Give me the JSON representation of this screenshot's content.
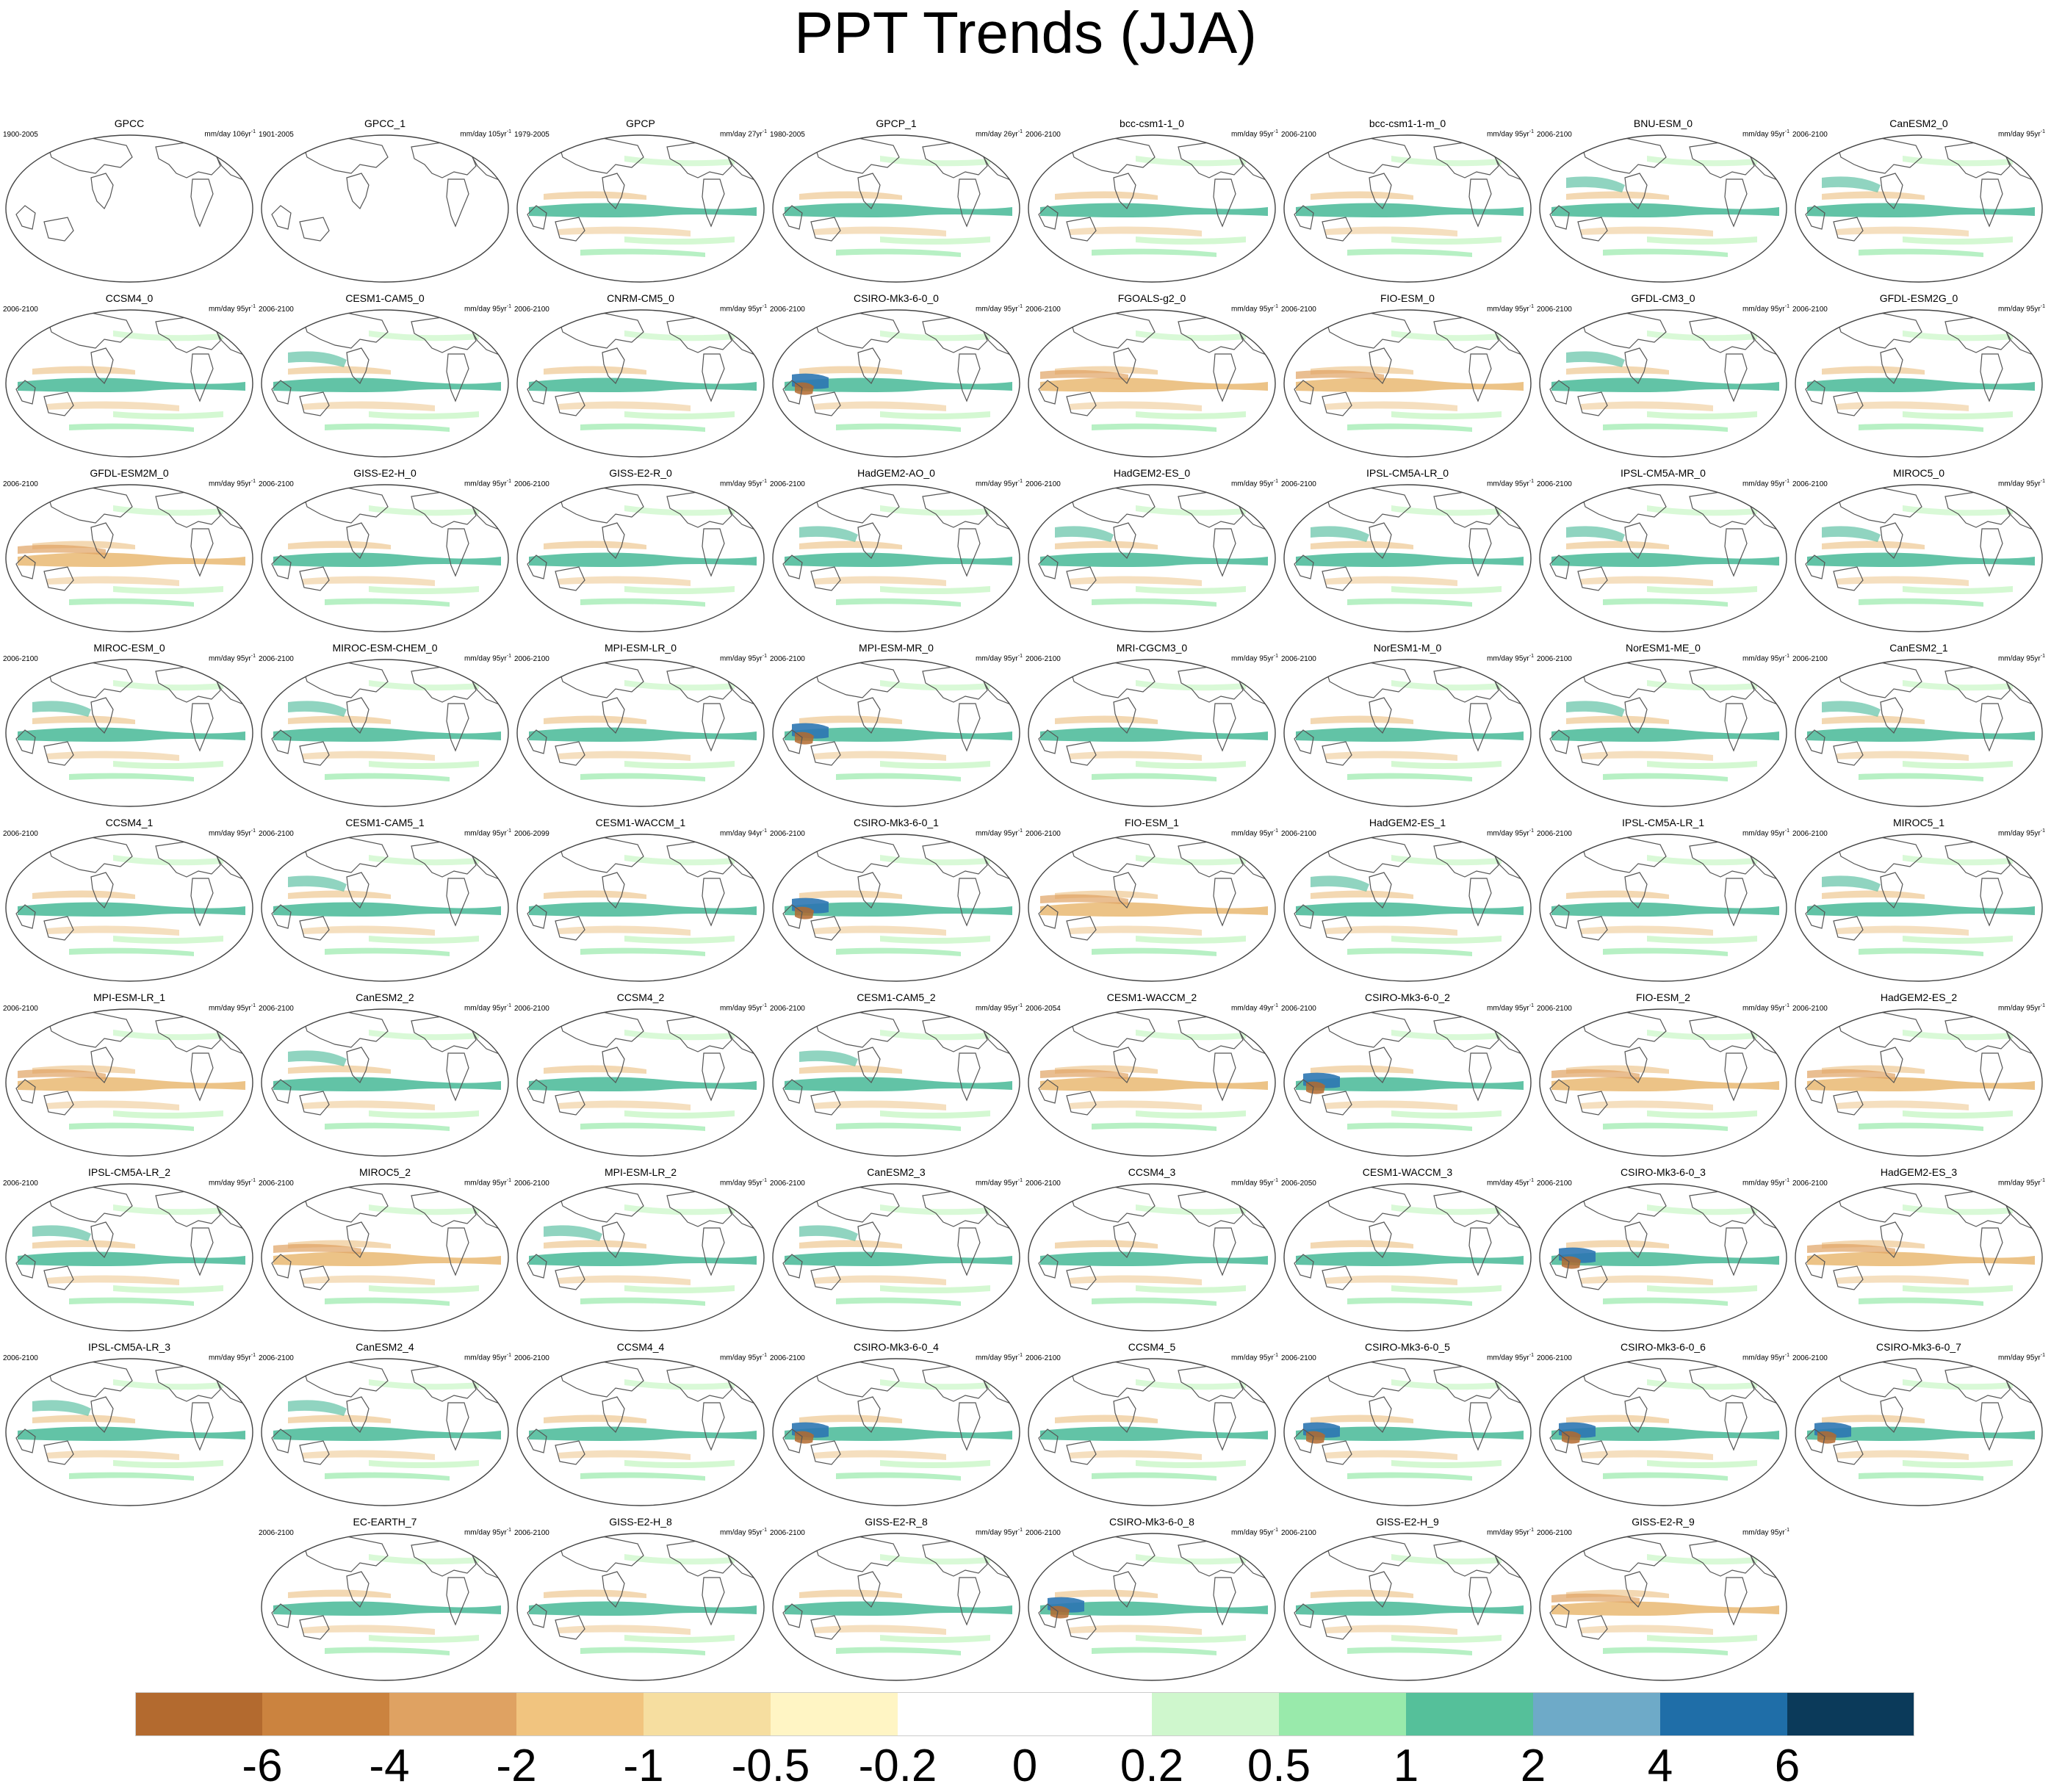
{
  "title": "PPT Trends (JJA)",
  "colors": {
    "palette": [
      "#b36a2f",
      "#cb833f",
      "#dfa262",
      "#f1c47f",
      "#f6dea0",
      "#fff5c4",
      "#ffffff",
      "#ffffff",
      "#cff7cd",
      "#99eaab",
      "#55c09a",
      "#6eaac8",
      "#1f6ea8",
      "#0b3a5a"
    ],
    "ocean_dry": "#e9b872",
    "ocean_wet": "#46b896",
    "ocean_wetter": "#2e77b2",
    "coast": "#555555"
  },
  "colorbar": {
    "tick_labels": [
      "-6",
      "-4",
      "-2",
      "-1",
      "-0.5",
      "-0.2",
      "0",
      "0.2",
      "0.5",
      "1",
      "2",
      "4",
      "6"
    ]
  },
  "panels": [
    {
      "title": "GPCC",
      "years": "1900-2005",
      "scale": "mm/day 106yr",
      "pattern": "sparse"
    },
    {
      "title": "GPCC_1",
      "years": "1901-2005",
      "scale": "mm/day 105yr",
      "pattern": "sparse"
    },
    {
      "title": "GPCP",
      "years": "1979-2005",
      "scale": "mm/day 27yr",
      "pattern": "obs"
    },
    {
      "title": "GPCP_1",
      "years": "1980-2005",
      "scale": "mm/day 26yr",
      "pattern": "obs"
    },
    {
      "title": "bcc-csm1-1_0",
      "years": "2006-2100",
      "scale": "mm/day 95yr",
      "pattern": "model"
    },
    {
      "title": "bcc-csm1-1-m_0",
      "years": "2006-2100",
      "scale": "mm/day 95yr",
      "pattern": "model"
    },
    {
      "title": "BNU-ESM_0",
      "years": "2006-2100",
      "scale": "mm/day 95yr",
      "pattern": "wet"
    },
    {
      "title": "CanESM2_0",
      "years": "2006-2100",
      "scale": "mm/day 95yr",
      "pattern": "wet"
    },
    {
      "title": "CCSM4_0",
      "years": "2006-2100",
      "scale": "mm/day 95yr",
      "pattern": "model"
    },
    {
      "title": "CESM1-CAM5_0",
      "years": "2006-2100",
      "scale": "mm/day 95yr",
      "pattern": "wet"
    },
    {
      "title": "CNRM-CM5_0",
      "years": "2006-2100",
      "scale": "mm/day 95yr",
      "pattern": "model"
    },
    {
      "title": "CSIRO-Mk3-6-0_0",
      "years": "2006-2100",
      "scale": "mm/day 95yr",
      "pattern": "strong"
    },
    {
      "title": "FGOALS-g2_0",
      "years": "2006-2100",
      "scale": "mm/day 95yr",
      "pattern": "dry"
    },
    {
      "title": "FIO-ESM_0",
      "years": "2006-2100",
      "scale": "mm/day 95yr",
      "pattern": "dry"
    },
    {
      "title": "GFDL-CM3_0",
      "years": "2006-2100",
      "scale": "mm/day 95yr",
      "pattern": "wet"
    },
    {
      "title": "GFDL-ESM2G_0",
      "years": "2006-2100",
      "scale": "mm/day 95yr",
      "pattern": "model"
    },
    {
      "title": "GFDL-ESM2M_0",
      "years": "2006-2100",
      "scale": "mm/day 95yr",
      "pattern": "dry"
    },
    {
      "title": "GISS-E2-H_0",
      "years": "2006-2100",
      "scale": "mm/day 95yr",
      "pattern": "model"
    },
    {
      "title": "GISS-E2-R_0",
      "years": "2006-2100",
      "scale": "mm/day 95yr",
      "pattern": "model"
    },
    {
      "title": "HadGEM2-AO_0",
      "years": "2006-2100",
      "scale": "mm/day 95yr",
      "pattern": "wet"
    },
    {
      "title": "HadGEM2-ES_0",
      "years": "2006-2100",
      "scale": "mm/day 95yr",
      "pattern": "wet"
    },
    {
      "title": "IPSL-CM5A-LR_0",
      "years": "2006-2100",
      "scale": "mm/day 95yr",
      "pattern": "wet"
    },
    {
      "title": "IPSL-CM5A-MR_0",
      "years": "2006-2100",
      "scale": "mm/day 95yr",
      "pattern": "wet"
    },
    {
      "title": "MIROC5_0",
      "years": "2006-2100",
      "scale": "mm/day 95yr",
      "pattern": "wet"
    },
    {
      "title": "MIROC-ESM_0",
      "years": "2006-2100",
      "scale": "mm/day 95yr",
      "pattern": "wet"
    },
    {
      "title": "MIROC-ESM-CHEM_0",
      "years": "2006-2100",
      "scale": "mm/day 95yr",
      "pattern": "wet"
    },
    {
      "title": "MPI-ESM-LR_0",
      "years": "2006-2100",
      "scale": "mm/day 95yr",
      "pattern": "model"
    },
    {
      "title": "MPI-ESM-MR_0",
      "years": "2006-2100",
      "scale": "mm/day 95yr",
      "pattern": "strong"
    },
    {
      "title": "MRI-CGCM3_0",
      "years": "2006-2100",
      "scale": "mm/day 95yr",
      "pattern": "model"
    },
    {
      "title": "NorESM1-M_0",
      "years": "2006-2100",
      "scale": "mm/day 95yr",
      "pattern": "model"
    },
    {
      "title": "NorESM1-ME_0",
      "years": "2006-2100",
      "scale": "mm/day 95yr",
      "pattern": "wet"
    },
    {
      "title": "CanESM2_1",
      "years": "2006-2100",
      "scale": "mm/day 95yr",
      "pattern": "wet"
    },
    {
      "title": "CCSM4_1",
      "years": "2006-2100",
      "scale": "mm/day 95yr",
      "pattern": "model"
    },
    {
      "title": "CESM1-CAM5_1",
      "years": "2006-2100",
      "scale": "mm/day 95yr",
      "pattern": "wet"
    },
    {
      "title": "CESM1-WACCM_1",
      "years": "2006-2099",
      "scale": "mm/day 94yr",
      "pattern": "model"
    },
    {
      "title": "CSIRO-Mk3-6-0_1",
      "years": "2006-2100",
      "scale": "mm/day 95yr",
      "pattern": "strong"
    },
    {
      "title": "FIO-ESM_1",
      "years": "2006-2100",
      "scale": "mm/day 95yr",
      "pattern": "dry"
    },
    {
      "title": "HadGEM2-ES_1",
      "years": "2006-2100",
      "scale": "mm/day 95yr",
      "pattern": "wet"
    },
    {
      "title": "IPSL-CM5A-LR_1",
      "years": "2006-2100",
      "scale": "mm/day 95yr",
      "pattern": "model"
    },
    {
      "title": "MIROC5_1",
      "years": "2006-2100",
      "scale": "mm/day 95yr",
      "pattern": "wet"
    },
    {
      "title": "MPI-ESM-LR_1",
      "years": "2006-2100",
      "scale": "mm/day 95yr",
      "pattern": "dry"
    },
    {
      "title": "CanESM2_2",
      "years": "2006-2100",
      "scale": "mm/day 95yr",
      "pattern": "wet"
    },
    {
      "title": "CCSM4_2",
      "years": "2006-2100",
      "scale": "mm/day 95yr",
      "pattern": "model"
    },
    {
      "title": "CESM1-CAM5_2",
      "years": "2006-2100",
      "scale": "mm/day 95yr",
      "pattern": "wet"
    },
    {
      "title": "CESM1-WACCM_2",
      "years": "2006-2054",
      "scale": "mm/day 49yr",
      "pattern": "dry"
    },
    {
      "title": "CSIRO-Mk3-6-0_2",
      "years": "2006-2100",
      "scale": "mm/day 95yr",
      "pattern": "strong"
    },
    {
      "title": "FIO-ESM_2",
      "years": "2006-2100",
      "scale": "mm/day 95yr",
      "pattern": "dry"
    },
    {
      "title": "HadGEM2-ES_2",
      "years": "2006-2100",
      "scale": "mm/day 95yr",
      "pattern": "dry"
    },
    {
      "title": "IPSL-CM5A-LR_2",
      "years": "2006-2100",
      "scale": "mm/day 95yr",
      "pattern": "wet"
    },
    {
      "title": "MIROC5_2",
      "years": "2006-2100",
      "scale": "mm/day 95yr",
      "pattern": "dry"
    },
    {
      "title": "MPI-ESM-LR_2",
      "years": "2006-2100",
      "scale": "mm/day 95yr",
      "pattern": "wet"
    },
    {
      "title": "CanESM2_3",
      "years": "2006-2100",
      "scale": "mm/day 95yr",
      "pattern": "wet"
    },
    {
      "title": "CCSM4_3",
      "years": "2006-2100",
      "scale": "mm/day 95yr",
      "pattern": "model"
    },
    {
      "title": "CESM1-WACCM_3",
      "years": "2006-2050",
      "scale": "mm/day 45yr",
      "pattern": "model"
    },
    {
      "title": "CSIRO-Mk3-6-0_3",
      "years": "2006-2100",
      "scale": "mm/day 95yr",
      "pattern": "strong"
    },
    {
      "title": "HadGEM2-ES_3",
      "years": "2006-2100",
      "scale": "mm/day 95yr",
      "pattern": "dry"
    },
    {
      "title": "IPSL-CM5A-LR_3",
      "years": "2006-2100",
      "scale": "mm/day 95yr",
      "pattern": "wet"
    },
    {
      "title": "CanESM2_4",
      "years": "2006-2100",
      "scale": "mm/day 95yr",
      "pattern": "wet"
    },
    {
      "title": "CCSM4_4",
      "years": "2006-2100",
      "scale": "mm/day 95yr",
      "pattern": "model"
    },
    {
      "title": "CSIRO-Mk3-6-0_4",
      "years": "2006-2100",
      "scale": "mm/day 95yr",
      "pattern": "strong"
    },
    {
      "title": "CCSM4_5",
      "years": "2006-2100",
      "scale": "mm/day 95yr",
      "pattern": "model"
    },
    {
      "title": "CSIRO-Mk3-6-0_5",
      "years": "2006-2100",
      "scale": "mm/day 95yr",
      "pattern": "strong"
    },
    {
      "title": "CSIRO-Mk3-6-0_6",
      "years": "2006-2100",
      "scale": "mm/day 95yr",
      "pattern": "strong"
    },
    {
      "title": "CSIRO-Mk3-6-0_7",
      "years": "2006-2100",
      "scale": "mm/day 95yr",
      "pattern": "strong"
    },
    {
      "title": "EC-EARTH_7",
      "years": "2006-2100",
      "scale": "mm/day 95yr",
      "pattern": "model"
    },
    {
      "title": "GISS-E2-H_8",
      "years": "2006-2100",
      "scale": "mm/day 95yr",
      "pattern": "model"
    },
    {
      "title": "GISS-E2-R_8",
      "years": "2006-2100",
      "scale": "mm/day 95yr",
      "pattern": "model"
    },
    {
      "title": "CSIRO-Mk3-6-0_8",
      "years": "2006-2100",
      "scale": "mm/day 95yr",
      "pattern": "strong"
    },
    {
      "title": "GISS-E2-H_9",
      "years": "2006-2100",
      "scale": "mm/day 95yr",
      "pattern": "model"
    },
    {
      "title": "GISS-E2-R_9",
      "years": "2006-2100",
      "scale": "mm/day 95yr",
      "pattern": "dry"
    }
  ]
}
